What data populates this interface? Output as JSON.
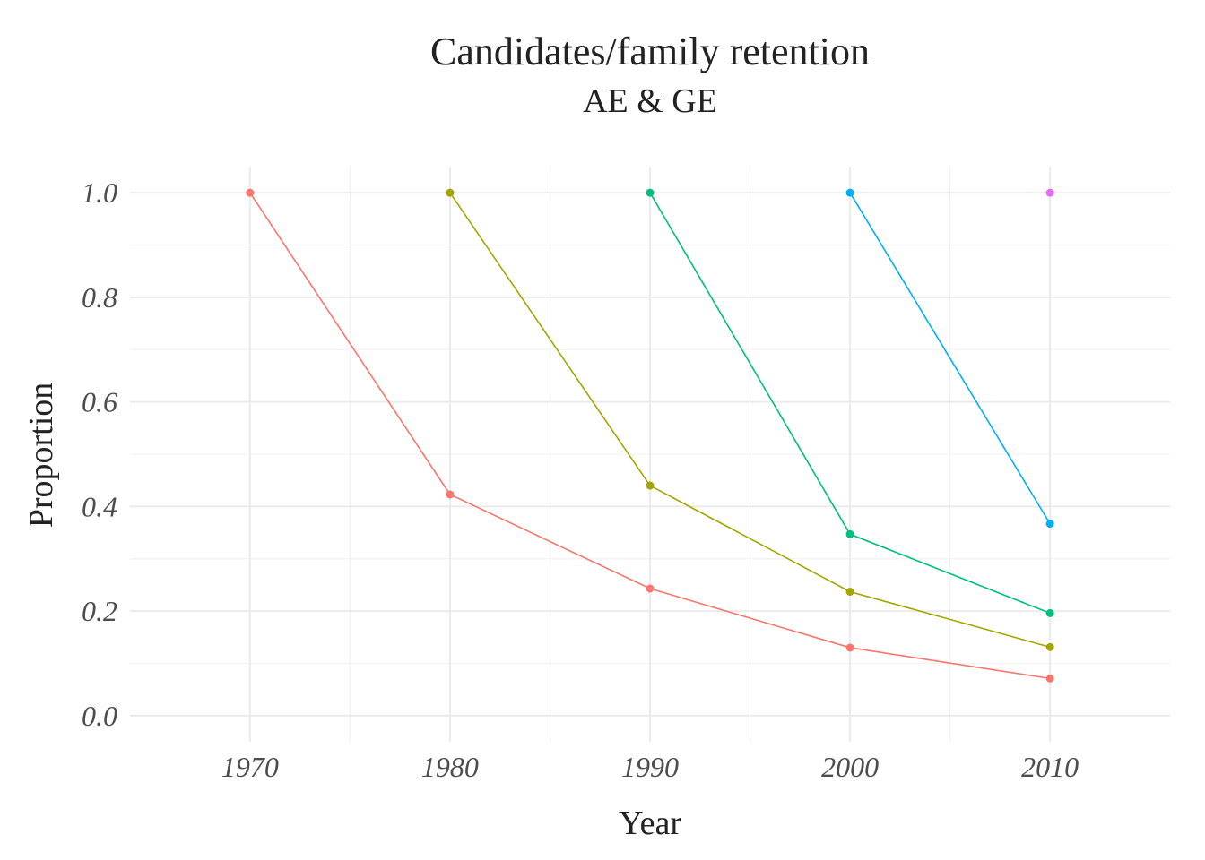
{
  "chart_data": {
    "type": "line",
    "title": "Candidates/family retention",
    "subtitle": "AE & GE",
    "xlabel": "Year",
    "ylabel": "Proportion",
    "xlim": [
      1964,
      2016
    ],
    "ylim": [
      -0.05,
      1.05
    ],
    "x_ticks": [
      1970,
      1980,
      1990,
      2000,
      2010
    ],
    "x_tick_labels": [
      "1970",
      "1980",
      "1990",
      "2000",
      "2010"
    ],
    "y_ticks": [
      0.0,
      0.2,
      0.4,
      0.6,
      0.8,
      1.0
    ],
    "y_tick_labels": [
      "0.0",
      "0.2",
      "0.4",
      "0.6",
      "0.8",
      "1.0"
    ],
    "grid": true,
    "legend": "none",
    "series": [
      {
        "color": "#F8766D",
        "points": [
          [
            1970,
            1.0
          ],
          [
            1980,
            0.423
          ],
          [
            1990,
            0.243
          ],
          [
            2000,
            0.13
          ],
          [
            2010,
            0.071
          ]
        ]
      },
      {
        "color": "#A3A500",
        "points": [
          [
            1980,
            1.0
          ],
          [
            1990,
            0.44
          ],
          [
            2000,
            0.237
          ],
          [
            2010,
            0.131
          ]
        ]
      },
      {
        "color": "#00BF7D",
        "points": [
          [
            1990,
            1.0
          ],
          [
            2000,
            0.347
          ],
          [
            2010,
            0.196
          ]
        ]
      },
      {
        "color": "#00B0F6",
        "points": [
          [
            2000,
            1.0
          ],
          [
            2010,
            0.367
          ]
        ]
      },
      {
        "color": "#E76BF3",
        "points": [
          [
            2010,
            1.0
          ]
        ]
      }
    ]
  }
}
